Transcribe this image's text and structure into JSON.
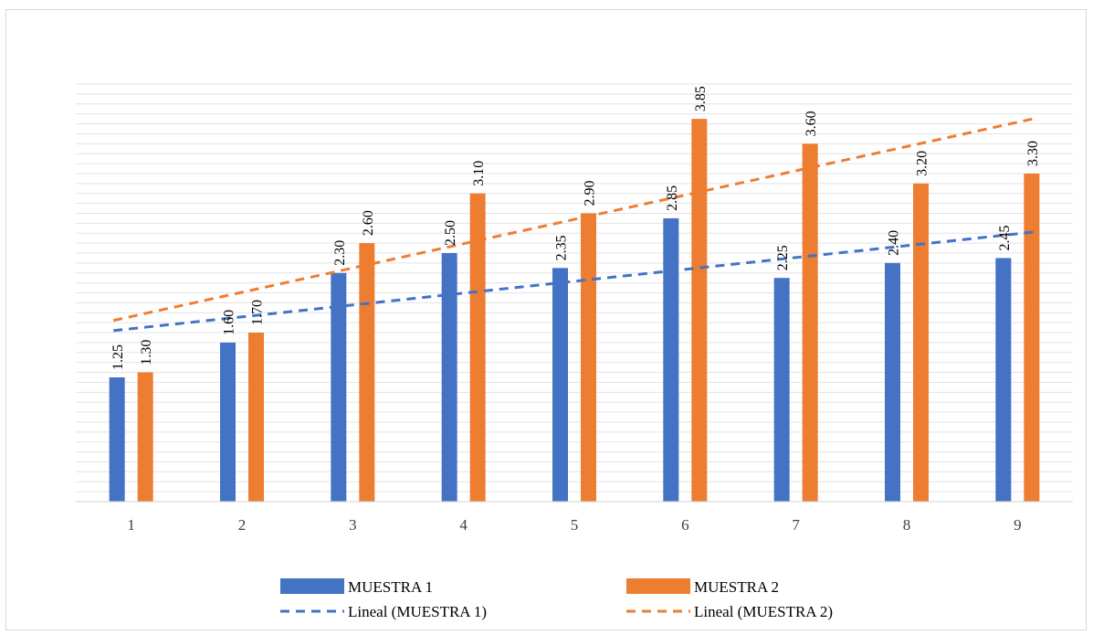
{
  "chart_data": {
    "type": "bar",
    "title": "",
    "xlabel": "",
    "ylabel": "",
    "categories": [
      "1",
      "2",
      "3",
      "4",
      "5",
      "6",
      "7",
      "8",
      "9"
    ],
    "ylim": [
      0,
      4.2
    ],
    "grid": true,
    "legend_position": "bottom",
    "series": [
      {
        "name": "MUESTRA 1",
        "color": "#4472C4",
        "values": [
          1.25,
          1.6,
          2.3,
          2.5,
          2.35,
          2.85,
          2.25,
          2.4,
          2.45
        ],
        "labels": [
          "1.25",
          "1.60",
          "2.30",
          "2.50",
          "2.35",
          "2.85",
          "2.25",
          "2.40",
          "2.45"
        ]
      },
      {
        "name": "MUESTRA 2",
        "color": "#ED7D31",
        "values": [
          1.3,
          1.7,
          2.6,
          3.1,
          2.9,
          3.85,
          3.6,
          3.2,
          3.3
        ],
        "labels": [
          "1.30",
          "1.70",
          "2.60",
          "3.10",
          "2.90",
          "3.85",
          "3.60",
          "3.20",
          "3.30"
        ]
      }
    ],
    "trendlines": [
      {
        "name": "Lineal (MUESTRA 1)",
        "series": 0,
        "type": "linear",
        "color": "#4472C4",
        "style": "dashed"
      },
      {
        "name": "Lineal (MUESTRA 2)",
        "series": 1,
        "type": "linear",
        "color": "#ED7D31",
        "style": "dashed"
      }
    ]
  }
}
